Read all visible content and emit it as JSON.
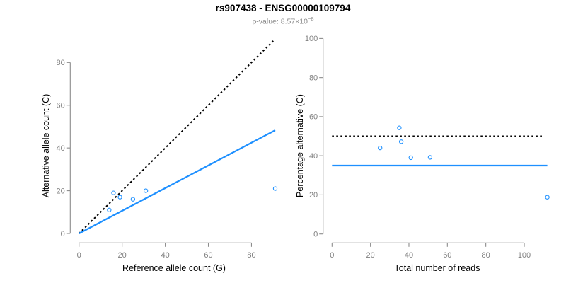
{
  "page": {
    "title": "rs907438 - ENSG00000109794",
    "subtitle_prefix": "p-value: 8.57×10",
    "subtitle_exponent": "−8"
  },
  "colors": {
    "accent_blue": "#1E90FF",
    "axis_gray": "#8C8C8C",
    "tick_label_gray": "#808080",
    "subtitle_gray": "#888888",
    "label_black": "#000000"
  },
  "chart_data": [
    {
      "name": "allele-counts",
      "type": "scatter",
      "xlabel": "Reference allele count (G)",
      "ylabel": "Alternative allele count (C)",
      "xticks": [
        0,
        20,
        40,
        60,
        80
      ],
      "yticks": [
        0,
        20,
        40,
        60,
        80
      ],
      "xlim": [
        0,
        92
      ],
      "ylim": [
        0,
        92
      ],
      "grid": false,
      "points": [
        [
          14,
          11
        ],
        [
          16,
          19
        ],
        [
          19,
          17
        ],
        [
          25,
          16
        ],
        [
          31,
          20
        ],
        [
          91,
          21
        ]
      ],
      "lines": [
        {
          "id": "identity-line",
          "style": "dotted",
          "color": "#000000",
          "points": [
            [
              0,
              0
            ],
            [
              90.5,
              90.5
            ]
          ]
        },
        {
          "id": "fit-line",
          "style": "solid",
          "color": "#1E90FF",
          "points": [
            [
              0,
              0
            ],
            [
              91,
              48.3
            ]
          ]
        }
      ]
    },
    {
      "name": "percentage-vs-depth",
      "type": "scatter",
      "xlabel": "Total number of reads",
      "ylabel": "Percentage alternative (C)",
      "xticks": [
        0,
        20,
        40,
        60,
        80,
        100
      ],
      "yticks": [
        0,
        20,
        40,
        60,
        80,
        100
      ],
      "xlim": [
        0,
        113
      ],
      "ylim": [
        0,
        100
      ],
      "grid": false,
      "points": [
        [
          25,
          44
        ],
        [
          35,
          54.3
        ],
        [
          36,
          47.2
        ],
        [
          41,
          39
        ],
        [
          51,
          39.2
        ],
        [
          112,
          18.8
        ]
      ],
      "lines": [
        {
          "id": "fifty-percent-line",
          "style": "dotted",
          "color": "#000000",
          "points": [
            [
              0,
              50
            ],
            [
              110,
              50
            ]
          ]
        },
        {
          "id": "mean-percentage-line",
          "style": "solid",
          "color": "#1E90FF",
          "points": [
            [
              0,
              35
            ],
            [
              112,
              35
            ]
          ]
        }
      ]
    }
  ]
}
